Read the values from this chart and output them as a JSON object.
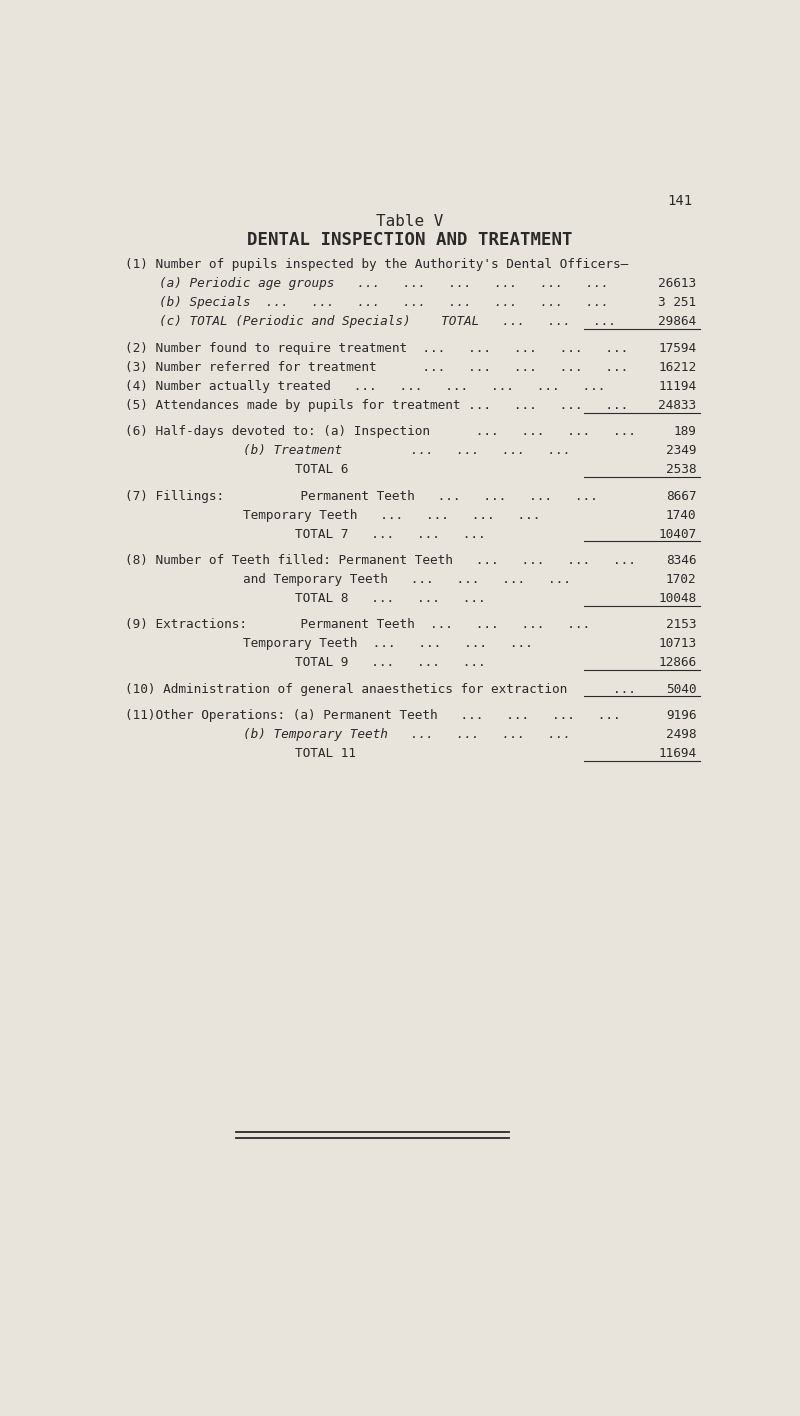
{
  "page_number": "141",
  "title1": "Table V",
  "title2": "DENTAL INSPECTION AND TREATMENT",
  "background_color": "#e8e4dc",
  "text_color": "#2a2a2a",
  "rows": [
    {
      "indent": 0,
      "label": "(1) Number of pupils inspected by the Authority's Dental Officers—",
      "value": "",
      "underline": false,
      "italic": false,
      "spacer_before": 0.5
    },
    {
      "indent": 1,
      "label": "(a) Periodic age groups   ...   ...   ...   ...   ...   ...",
      "value": "26613",
      "underline": false,
      "italic": true,
      "spacer_before": 0
    },
    {
      "indent": 1,
      "label": "(b) Specials  ...   ...   ...   ...   ...   ...   ...   ...",
      "value": "3 251",
      "underline": false,
      "italic": true,
      "spacer_before": 0
    },
    {
      "indent": 1,
      "label": "(c) TOTAL (Periodic and Specials)    TOTAL   ...   ...   ...",
      "value": "29864",
      "underline": true,
      "italic": true,
      "spacer_before": 0
    },
    {
      "indent": 0,
      "label": "",
      "value": "",
      "underline": false,
      "italic": false,
      "spacer_before": 0.8
    },
    {
      "indent": 0,
      "label": "(2) Number found to require treatment  ...   ...   ...   ...   ...",
      "value": "17594",
      "underline": false,
      "italic": false,
      "spacer_before": 0
    },
    {
      "indent": 0,
      "label": "(3) Number referred for treatment      ...   ...   ...   ...   ...",
      "value": "16212",
      "underline": false,
      "italic": false,
      "spacer_before": 0
    },
    {
      "indent": 0,
      "label": "(4) Number actually treated   ...   ...   ...   ...   ...   ...",
      "value": "11194",
      "underline": false,
      "italic": false,
      "spacer_before": 0
    },
    {
      "indent": 0,
      "label": "(5) Attendances made by pupils for treatment ...   ...   ...   ...",
      "value": "24833",
      "underline": true,
      "italic": false,
      "spacer_before": 0
    },
    {
      "indent": 0,
      "label": "",
      "value": "",
      "underline": false,
      "italic": false,
      "spacer_before": 0.8
    },
    {
      "indent": 0,
      "label": "(6) Half-days devoted to: (a) Inspection      ...   ...   ...   ...",
      "value": "189",
      "underline": false,
      "italic": false,
      "spacer_before": 0
    },
    {
      "indent": 2,
      "label": "(b) Treatment         ...   ...   ...   ...",
      "value": "2349",
      "underline": false,
      "italic": true,
      "spacer_before": 0
    },
    {
      "indent": 3,
      "label": "TOTAL 6",
      "value": "2538",
      "underline": true,
      "italic": false,
      "spacer_before": 0
    },
    {
      "indent": 0,
      "label": "",
      "value": "",
      "underline": false,
      "italic": false,
      "spacer_before": 0.8
    },
    {
      "indent": 0,
      "label": "(7) Fillings:          Permanent Teeth   ...   ...   ...   ...",
      "value": "8667",
      "underline": false,
      "italic": false,
      "spacer_before": 0
    },
    {
      "indent": 2,
      "label": "Temporary Teeth   ...   ...   ...   ...",
      "value": "1740",
      "underline": false,
      "italic": false,
      "spacer_before": 0
    },
    {
      "indent": 3,
      "label": "TOTAL 7   ...   ...   ...",
      "value": "10407",
      "underline": true,
      "italic": false,
      "spacer_before": 0
    },
    {
      "indent": 0,
      "label": "",
      "value": "",
      "underline": false,
      "italic": false,
      "spacer_before": 0.8
    },
    {
      "indent": 0,
      "label": "(8) Number of Teeth filled: Permanent Teeth   ...   ...   ...   ...",
      "value": "8346",
      "underline": false,
      "italic": false,
      "spacer_before": 0
    },
    {
      "indent": 2,
      "label": "and Temporary Teeth   ...   ...   ...   ...",
      "value": "1702",
      "underline": false,
      "italic": false,
      "spacer_before": 0
    },
    {
      "indent": 3,
      "label": "TOTAL 8   ...   ...   ...",
      "value": "10048",
      "underline": true,
      "italic": false,
      "spacer_before": 0
    },
    {
      "indent": 0,
      "label": "",
      "value": "",
      "underline": false,
      "italic": false,
      "spacer_before": 0.8
    },
    {
      "indent": 0,
      "label": "(9) Extractions:       Permanent Teeth  ...   ...   ...   ...",
      "value": "2153",
      "underline": false,
      "italic": false,
      "spacer_before": 0
    },
    {
      "indent": 2,
      "label": "Temporary Teeth  ...   ...   ...   ...",
      "value": "10713",
      "underline": false,
      "italic": false,
      "spacer_before": 0
    },
    {
      "indent": 3,
      "label": "TOTAL 9   ...   ...   ...",
      "value": "12866",
      "underline": true,
      "italic": false,
      "spacer_before": 0
    },
    {
      "indent": 0,
      "label": "",
      "value": "",
      "underline": false,
      "italic": false,
      "spacer_before": 0.8
    },
    {
      "indent": 0,
      "label": "(10) Administration of general anaesthetics for extraction      ...",
      "value": "5040",
      "underline": true,
      "italic": false,
      "spacer_before": 0
    },
    {
      "indent": 0,
      "label": "",
      "value": "",
      "underline": false,
      "italic": false,
      "spacer_before": 0.8
    },
    {
      "indent": 0,
      "label": "(11)Other Operations: (a) Permanent Teeth   ...   ...   ...   ...",
      "value": "9196",
      "underline": false,
      "italic": false,
      "spacer_before": 0
    },
    {
      "indent": 2,
      "label": "(b) Temporary Teeth   ...   ...   ...   ...",
      "value": "2498",
      "underline": false,
      "italic": true,
      "spacer_before": 0
    },
    {
      "indent": 3,
      "label": "TOTAL 11",
      "value": "11694",
      "underline": true,
      "italic": false,
      "spacer_before": 0
    }
  ],
  "font_size": 9.2,
  "title_font_size": 11.5,
  "subtitle_font_size": 12.5
}
